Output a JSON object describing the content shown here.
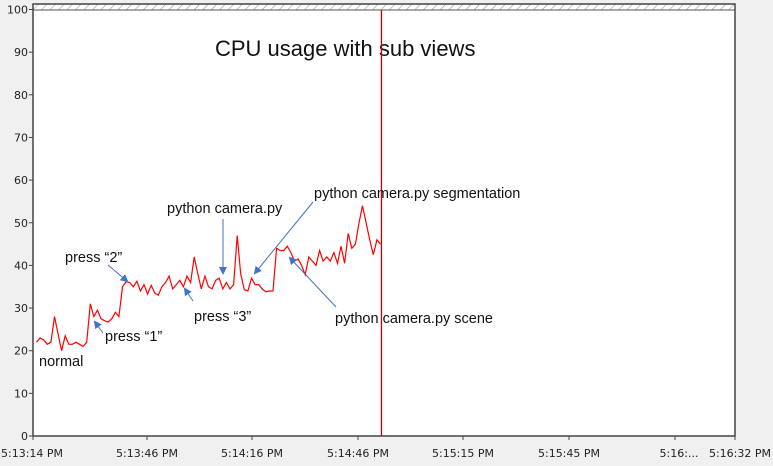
{
  "chart_data": {
    "type": "line",
    "title": "CPU usage with sub views",
    "xlabel": "",
    "ylabel": "",
    "ylim": [
      0,
      100
    ],
    "xlim": [
      "5:13:14 PM",
      "5:16:32 PM"
    ],
    "grid": false,
    "y_ticks": [
      "0",
      "10",
      "20",
      "30",
      "40",
      "50",
      "60",
      "70",
      "80",
      "90",
      "100"
    ],
    "x_ticks": [
      "5:13:14 PM",
      "5:13:46 PM",
      "5:14:16 PM",
      "5:14:46 PM",
      "5:15:15 PM",
      "5:15:45 PM",
      "5:16:...",
      "5:16:32 PM"
    ],
    "series": [
      {
        "color": "#ff0000",
        "x_range": [
          "5:13:15 PM",
          "5:14:52 PM"
        ],
        "values": [
          22,
          23,
          22.5,
          21.5,
          22,
          28,
          24,
          20,
          23.5,
          21.5,
          21.5,
          22,
          21.5,
          21,
          22,
          31,
          28,
          29.5,
          27.5,
          27,
          26.7,
          27.5,
          29,
          28,
          35,
          36.2,
          36,
          35,
          36.3,
          34,
          35.5,
          33.3,
          35.3,
          33.5,
          33,
          35,
          36,
          37.5,
          34.5,
          35.5,
          36.5,
          35,
          37.5,
          36,
          42,
          38,
          34.5,
          37.5,
          35,
          34.5,
          36.5,
          37,
          34.5,
          36,
          34.5,
          35.5,
          47,
          38,
          34.3,
          34,
          37,
          35.5,
          35.5,
          34.5,
          33.8,
          34,
          34,
          44,
          43.5,
          43.5,
          44.5,
          43,
          41,
          41.5,
          40,
          37.8,
          42,
          41,
          40,
          43.5,
          41,
          42,
          41,
          43,
          40.5,
          44.5,
          40.5,
          47.5,
          44,
          45,
          50,
          54,
          50,
          46,
          42.5,
          46,
          45
        ]
      }
    ],
    "cursor_line": {
      "time": "5:14:52 PM",
      "color": "#cc0000"
    },
    "annotations": [
      {
        "text": "normal"
      },
      {
        "text": "press “1”"
      },
      {
        "text": "press “2”"
      },
      {
        "text": "press “3”"
      },
      {
        "text": "python camera.py"
      },
      {
        "text": "python camera.py segmentation"
      },
      {
        "text": "python camera.py scene"
      }
    ],
    "arrow_color": "#4472c4"
  }
}
